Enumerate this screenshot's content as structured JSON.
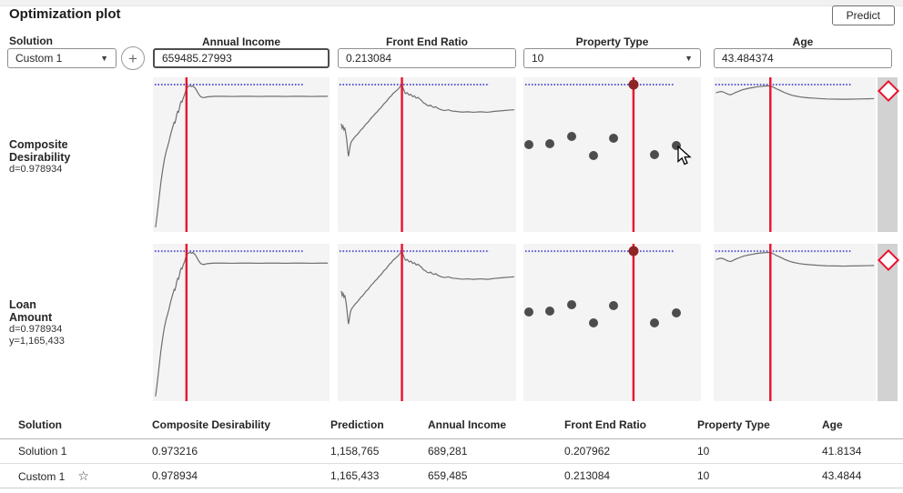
{
  "header": {
    "title": "Optimization plot",
    "predict_label": "Predict"
  },
  "controls": {
    "solution_label": "Solution",
    "solution_value": "Custom 1",
    "factors": [
      {
        "key": "annual_income",
        "name": "Annual Income",
        "value": "659485.27993",
        "type": "input",
        "focused": true
      },
      {
        "key": "front_end_ratio",
        "name": "Front End Ratio",
        "value": "0.213084",
        "type": "input",
        "focused": false
      },
      {
        "key": "property_type",
        "name": "Property Type",
        "value": "10",
        "type": "dropdown",
        "focused": false
      },
      {
        "key": "age",
        "name": "Age",
        "value": "43.484374",
        "type": "input",
        "focused": false
      }
    ]
  },
  "responses": [
    {
      "key": "composite_desirability",
      "title_lines": [
        "Composite",
        "Desirability"
      ],
      "stats": [
        "d=0.978934"
      ]
    },
    {
      "key": "loan_amount",
      "title_lines": [
        "Loan",
        "Amount"
      ],
      "stats": [
        "d=0.978934",
        "y=1,165,433"
      ]
    }
  ],
  "chart_data": {
    "type": "line",
    "note": "Prediction profiler: each cell plots response vs factor; values are [x%, y%] of cell, y measured from top",
    "colors": {
      "curve": "#6e6e6e",
      "dotted_target": "#5b5bd6",
      "current_level_line": "#e8112d",
      "scatter_dot": "#4d4d4d",
      "selected_dot": "#8e2424",
      "panel_bg": "#f4f4f4",
      "diamond": "#e8112d"
    },
    "dotted_target": {
      "y_pct": 4.7,
      "x_start_pct": 1,
      "x_end_pct": 85
    },
    "factors": [
      {
        "key": "annual_income",
        "red_line_pct": 19,
        "kind": "curve",
        "curve": [
          [
            1.5,
            97
          ],
          [
            2.5,
            88
          ],
          [
            3.5,
            78
          ],
          [
            4.5,
            68
          ],
          [
            5.5,
            60
          ],
          [
            6.5,
            53
          ],
          [
            7.5,
            48
          ],
          [
            9,
            42
          ],
          [
            10,
            37
          ],
          [
            11,
            33
          ],
          [
            11.5,
            31
          ],
          [
            12,
            29
          ],
          [
            12.5,
            29.5
          ],
          [
            13,
            27
          ],
          [
            13.5,
            24
          ],
          [
            14,
            22
          ],
          [
            14.5,
            22.5
          ],
          [
            15,
            20
          ],
          [
            15.5,
            17
          ],
          [
            16,
            15.5
          ],
          [
            16.5,
            16
          ],
          [
            17,
            14
          ],
          [
            17.5,
            12.5
          ],
          [
            18,
            11
          ],
          [
            18.5,
            9
          ],
          [
            19,
            7.5
          ],
          [
            19.5,
            6.5
          ],
          [
            20,
            6
          ],
          [
            21,
            5.5
          ],
          [
            22,
            6
          ],
          [
            22.5,
            5.5
          ],
          [
            23,
            6
          ],
          [
            24,
            7
          ],
          [
            25,
            9
          ],
          [
            26,
            11
          ],
          [
            27,
            12.5
          ],
          [
            28,
            13
          ],
          [
            29,
            13.2
          ],
          [
            30,
            12.8
          ],
          [
            32,
            12.5
          ],
          [
            35,
            12.3
          ],
          [
            40,
            12.3
          ],
          [
            45,
            12.4
          ],
          [
            50,
            12.3
          ],
          [
            55,
            12.3
          ],
          [
            60,
            12.4
          ],
          [
            65,
            12.3
          ],
          [
            70,
            12.3
          ],
          [
            75,
            12.4
          ],
          [
            80,
            12.3
          ],
          [
            85,
            12.3
          ],
          [
            90,
            12.4
          ],
          [
            95,
            12.3
          ],
          [
            99,
            12.3
          ]
        ]
      },
      {
        "key": "front_end_ratio",
        "red_line_pct": 36,
        "kind": "curve",
        "curve": [
          [
            2,
            30
          ],
          [
            2.5,
            33
          ],
          [
            3,
            31.5
          ],
          [
            3.5,
            34
          ],
          [
            4,
            33
          ],
          [
            4.5,
            36
          ],
          [
            5,
            40
          ],
          [
            5.5,
            46
          ],
          [
            6,
            51
          ],
          [
            6.5,
            48
          ],
          [
            7,
            44
          ],
          [
            7.5,
            42
          ],
          [
            8,
            41
          ],
          [
            9,
            39.5
          ],
          [
            10,
            38
          ],
          [
            11,
            37
          ],
          [
            12,
            35.5
          ],
          [
            13,
            34
          ],
          [
            14,
            33
          ],
          [
            15,
            31.5
          ],
          [
            16,
            30
          ],
          [
            17,
            29
          ],
          [
            18,
            27.5
          ],
          [
            19,
            26
          ],
          [
            20,
            25
          ],
          [
            21,
            23.5
          ],
          [
            22,
            22.5
          ],
          [
            23,
            21
          ],
          [
            24,
            20
          ],
          [
            25,
            18.5
          ],
          [
            26,
            17
          ],
          [
            27,
            16
          ],
          [
            28,
            14.5
          ],
          [
            29,
            13
          ],
          [
            30,
            12
          ],
          [
            31,
            10.5
          ],
          [
            32,
            9.5
          ],
          [
            33,
            8.5
          ],
          [
            34,
            7.5
          ],
          [
            35,
            6
          ],
          [
            36,
            5
          ],
          [
            36.5,
            6.5
          ],
          [
            37,
            8
          ],
          [
            37.5,
            9.5
          ],
          [
            38,
            10.5
          ],
          [
            39,
            10
          ],
          [
            40,
            11.5
          ],
          [
            41,
            11
          ],
          [
            42,
            12.5
          ],
          [
            43,
            12
          ],
          [
            44,
            13.5
          ],
          [
            45,
            13
          ],
          [
            46,
            14
          ],
          [
            47,
            15
          ],
          [
            48,
            16.5
          ],
          [
            49,
            17
          ],
          [
            50,
            18
          ],
          [
            51,
            18.5
          ],
          [
            52,
            18
          ],
          [
            53,
            19
          ],
          [
            54,
            19.5
          ],
          [
            55,
            19
          ],
          [
            56,
            20
          ],
          [
            57,
            20.5
          ],
          [
            58,
            21
          ],
          [
            60,
            21.5
          ],
          [
            62,
            21
          ],
          [
            64,
            21.8
          ],
          [
            66,
            22
          ],
          [
            68,
            22.3
          ],
          [
            70,
            22.5
          ],
          [
            73,
            22.3
          ],
          [
            76,
            22.6
          ],
          [
            80,
            22.3
          ],
          [
            84,
            22.6
          ],
          [
            88,
            22
          ],
          [
            92,
            21.6
          ],
          [
            96,
            21.2
          ],
          [
            99,
            21
          ]
        ]
      },
      {
        "key": "property_type",
        "red_line_pct": 62,
        "kind": "scatter",
        "points": [
          [
            3,
            43.5
          ],
          [
            15,
            43
          ],
          [
            27,
            38.5
          ],
          [
            39.5,
            50.5
          ],
          [
            51,
            39.5
          ],
          [
            74,
            50
          ],
          [
            86,
            44
          ]
        ],
        "selected_point": [
          62,
          4.7
        ]
      },
      {
        "key": "age",
        "red_line_pct": 35,
        "kind": "curve",
        "curve": [
          [
            1.5,
            10
          ],
          [
            3,
            9.5
          ],
          [
            4.5,
            9.2
          ],
          [
            6,
            9.5
          ],
          [
            7.5,
            10.3
          ],
          [
            9,
            11
          ],
          [
            10.5,
            11.3
          ],
          [
            12,
            10.6
          ],
          [
            13.5,
            9.8
          ],
          [
            15,
            9.2
          ],
          [
            16.5,
            8.6
          ],
          [
            18,
            8
          ],
          [
            20,
            7.5
          ],
          [
            22,
            7
          ],
          [
            24,
            6.7
          ],
          [
            26,
            6.3
          ],
          [
            28,
            6
          ],
          [
            30,
            5.8
          ],
          [
            32,
            5.6
          ],
          [
            34,
            5.5
          ],
          [
            35,
            5.6
          ],
          [
            36,
            6
          ],
          [
            37,
            6.5
          ],
          [
            38,
            7
          ],
          [
            39,
            7.6
          ],
          [
            40,
            8
          ],
          [
            42,
            9
          ],
          [
            44,
            10
          ],
          [
            46,
            10.8
          ],
          [
            48,
            11.5
          ],
          [
            50,
            12
          ],
          [
            53,
            12.6
          ],
          [
            56,
            13
          ],
          [
            59,
            13.3
          ],
          [
            62,
            13.5
          ],
          [
            66,
            13.8
          ],
          [
            70,
            14
          ],
          [
            75,
            14.1
          ],
          [
            80,
            14.2
          ],
          [
            85,
            14.1
          ],
          [
            90,
            14
          ],
          [
            95,
            13.9
          ],
          [
            99,
            13.8
          ]
        ]
      }
    ]
  },
  "table": {
    "headers": [
      "Solution",
      "Composite Desirability",
      "Prediction",
      "Annual Income",
      "Front End Ratio",
      "Property Type",
      "Age"
    ],
    "rows": [
      {
        "cells": [
          "Solution 1",
          "0.973216",
          "1,158,765",
          "689,281",
          "0.207962",
          "10",
          "41.8134"
        ],
        "starred": false
      },
      {
        "cells": [
          "Custom 1",
          "0.978934",
          "1,165,433",
          "659,485",
          "0.213084",
          "10",
          "43.4844"
        ],
        "starred": true
      }
    ],
    "star_icon": "☆"
  },
  "layout_values": {
    "caret_glyph": "▼"
  }
}
